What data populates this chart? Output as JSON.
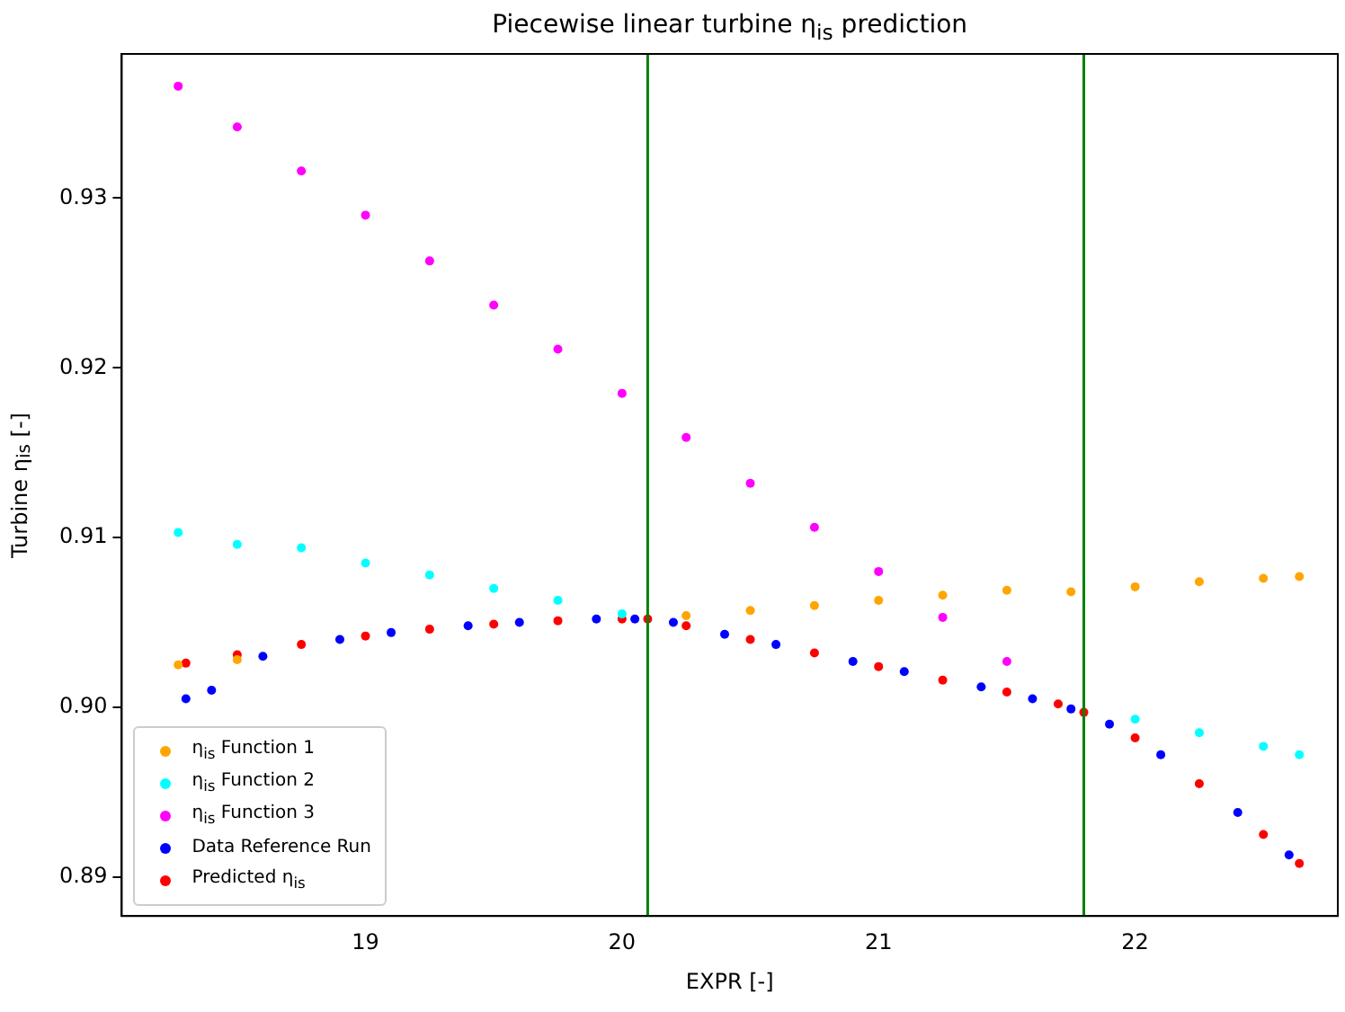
{
  "chart_data": {
    "type": "scatter",
    "title": "Piecewise linear turbine η$_{is}$ prediction",
    "xlabel": "EXPR [-]",
    "ylabel": "Turbine η$_{is}$ [-]",
    "xlim": [
      18.05,
      22.79
    ],
    "xticks": [
      19,
      20,
      21,
      22
    ],
    "ylim": [
      0.8877,
      0.9385
    ],
    "yticks": [
      {
        "value": 0.89,
        "label": "0.89"
      },
      {
        "value": 0.9,
        "label": "0.90"
      },
      {
        "value": 0.91,
        "label": "0.91"
      },
      {
        "value": 0.92,
        "label": "0.92"
      },
      {
        "value": 0.93,
        "label": "0.93"
      }
    ],
    "grid": false,
    "legend": "bottom left",
    "marker": "circle",
    "ref_lines": [
      {
        "axis": "x",
        "value": 20.1,
        "color": "#008000"
      },
      {
        "axis": "x",
        "value": 21.8,
        "color": "#008000"
      }
    ],
    "series": [
      {
        "name": "η$_{is}$ Function 1",
        "color": "#ffa500",
        "x": [
          18.27,
          18.5,
          18.75,
          19.0,
          19.25,
          19.5,
          19.75,
          20.0,
          20.25,
          20.5,
          20.75,
          21.0,
          21.25,
          21.5,
          21.75,
          22.0,
          22.25,
          22.5,
          22.64
        ],
        "values": [
          0.9025,
          0.9028,
          null,
          null,
          null,
          null,
          null,
          null,
          0.9054,
          0.9057,
          0.906,
          0.9063,
          0.9066,
          0.9069,
          0.9068,
          0.9071,
          0.9074,
          0.9076,
          0.9077
        ]
      },
      {
        "name": "η$_{is}$ Function 2",
        "color": "#00ffff",
        "x": [
          18.27,
          18.5,
          18.75,
          19.0,
          19.25,
          19.5,
          19.75,
          20.0,
          20.25,
          20.5,
          20.75,
          21.0,
          21.25,
          21.5,
          21.75,
          22.0,
          22.25,
          22.5,
          22.64
        ],
        "values": [
          0.9103,
          0.9096,
          0.9094,
          0.9085,
          0.9078,
          0.907,
          0.9063,
          0.9055,
          null,
          null,
          null,
          null,
          null,
          null,
          null,
          0.8993,
          0.8985,
          0.8977,
          0.8972
        ]
      },
      {
        "name": "η$_{is}$ Function 3",
        "color": "#ff00ff",
        "x": [
          18.27,
          18.5,
          18.75,
          19.0,
          19.25,
          19.5,
          19.75,
          20.0,
          20.25,
          20.5,
          20.75,
          21.0,
          21.25,
          21.5
        ],
        "values": [
          0.9366,
          0.9342,
          0.9316,
          0.929,
          0.9263,
          0.9237,
          0.9211,
          0.9185,
          0.9159,
          0.9132,
          0.9106,
          0.908,
          0.9053,
          0.9027
        ]
      },
      {
        "name": "Data Reference Run",
        "color": "#0000ff",
        "x": [
          18.3,
          18.4,
          18.6,
          18.9,
          19.1,
          19.4,
          19.6,
          19.9,
          20.05,
          20.2,
          20.4,
          20.6,
          20.9,
          21.1,
          21.4,
          21.6,
          21.75,
          21.9,
          22.1,
          22.4,
          22.6
        ],
        "values": [
          0.9005,
          0.901,
          0.903,
          0.904,
          0.9044,
          0.9048,
          0.905,
          0.9052,
          0.9052,
          0.905,
          0.9043,
          0.9037,
          0.9027,
          0.9021,
          0.9012,
          0.9005,
          0.8999,
          0.899,
          0.8972,
          0.8938,
          0.8913
        ]
      },
      {
        "name": "Predicted η$_{is}$",
        "color": "#ff0000",
        "x": [
          18.3,
          18.5,
          18.75,
          19.0,
          19.25,
          19.5,
          19.75,
          20.0,
          20.1,
          20.25,
          20.5,
          20.75,
          21.0,
          21.25,
          21.5,
          21.7,
          21.8,
          22.0,
          22.25,
          22.5,
          22.64
        ],
        "values": [
          0.9026,
          0.9031,
          0.9037,
          0.9042,
          0.9046,
          0.9049,
          0.9051,
          0.9052,
          0.9052,
          0.9048,
          0.904,
          0.9032,
          0.9024,
          0.9016,
          0.9009,
          0.9002,
          0.8997,
          0.8982,
          0.8955,
          0.8925,
          0.8908
        ]
      }
    ]
  }
}
